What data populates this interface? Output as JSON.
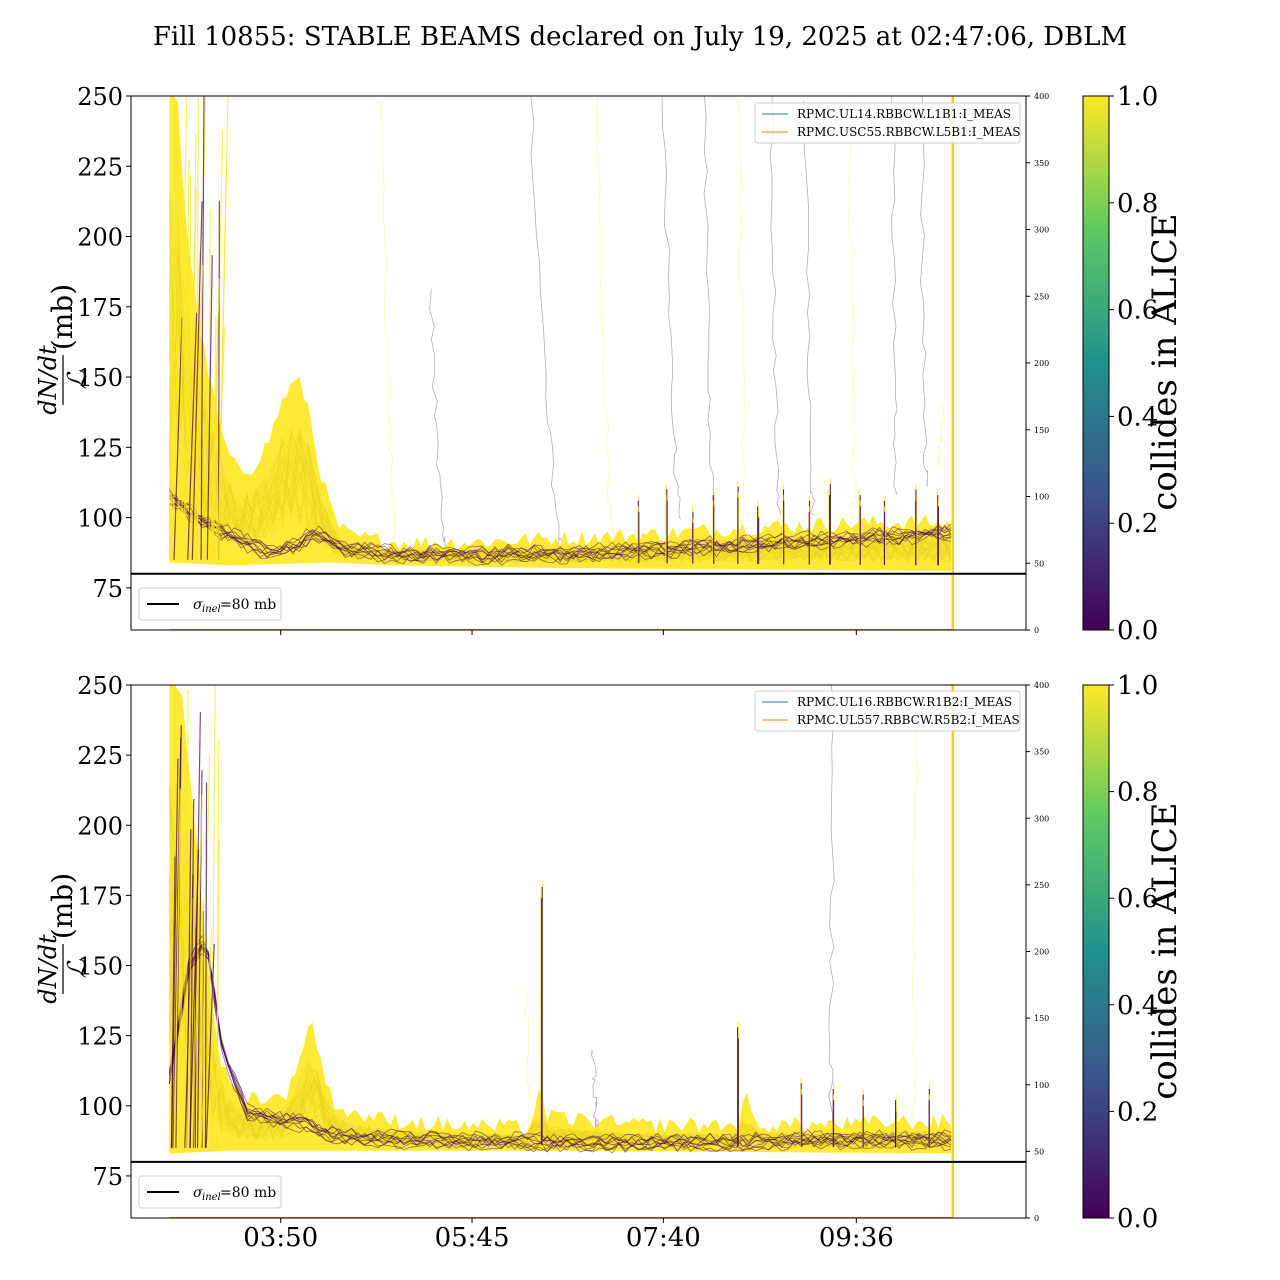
{
  "title": "Fill 10855: STABLE BEAMS declared on July 19, 2025 at 02:47:06, DBLM",
  "colormap": {
    "label": "collides in ALICE",
    "ticks": [
      "0.0",
      "0.2",
      "0.4",
      "0.6",
      "0.8",
      "1.0"
    ],
    "stops": [
      "#440154",
      "#3b528b",
      "#21918c",
      "#5ec962",
      "#fde725"
    ]
  },
  "x_tick_labels": [
    "03:50",
    "05:45",
    "07:40",
    "09:36"
  ],
  "chart_data": [
    {
      "type": "line",
      "panel": "top",
      "ylabel_main": "dN/dt",
      "ylabel_frac": "ℒ",
      "ylabel_unit": "(mb)",
      "y_ticks": [
        "75",
        "100",
        "125",
        "150",
        "175",
        "200",
        "225",
        "250"
      ],
      "ylim": [
        60,
        250
      ],
      "y2_ticks": [
        "0",
        "50",
        "100",
        "150",
        "200",
        "250",
        "300",
        "350",
        "400"
      ],
      "y2lim": [
        0,
        400
      ],
      "xlim_minutes": [
        140,
        678
      ],
      "x_tick_minutes": [
        230,
        345,
        460,
        576
      ],
      "end_marker_minutes": 634,
      "reference": {
        "value": 80,
        "label_sym": "σ",
        "label_sub": "inel",
        "label_rest": "=80 mb",
        "color": "#000000"
      },
      "legend": [
        {
          "name": "RPMC.UL14.RBBCW.L1B1:I_MEAS",
          "color": "#1f77b4"
        },
        {
          "name": "RPMC.USC55.RBBCW.L5B1:I_MEAS",
          "color": "#ff7f0e"
        }
      ],
      "envelope_yellow": [
        [
          163,
          250
        ],
        [
          168,
          250
        ],
        [
          172,
          210
        ],
        [
          180,
          170
        ],
        [
          190,
          140
        ],
        [
          196,
          125
        ],
        [
          204,
          115
        ],
        [
          212,
          116
        ],
        [
          222,
          125
        ],
        [
          232,
          142
        ],
        [
          240,
          148
        ],
        [
          246,
          140
        ],
        [
          252,
          120
        ],
        [
          258,
          106
        ],
        [
          264,
          96
        ],
        [
          272,
          92
        ],
        [
          300,
          90
        ],
        [
          340,
          90
        ],
        [
          380,
          91
        ],
        [
          420,
          92
        ],
        [
          460,
          93
        ],
        [
          500,
          95
        ],
        [
          540,
          96
        ],
        [
          580,
          97
        ],
        [
          620,
          97
        ],
        [
          633,
          97
        ]
      ],
      "envelope_yellow_low": [
        [
          163,
          84
        ],
        [
          200,
          83
        ],
        [
          260,
          84
        ],
        [
          300,
          83
        ],
        [
          400,
          82
        ],
        [
          633,
          81
        ]
      ],
      "envelope_purple": [
        [
          163,
          108
        ],
        [
          180,
          100
        ],
        [
          200,
          94
        ],
        [
          220,
          88
        ],
        [
          240,
          90
        ],
        [
          250,
          95
        ],
        [
          258,
          93
        ],
        [
          266,
          89
        ],
        [
          300,
          87
        ],
        [
          400,
          87
        ],
        [
          460,
          89
        ],
        [
          520,
          91
        ],
        [
          580,
          93
        ],
        [
          633,
          95
        ]
      ],
      "spikes": [
        [
          445,
          108
        ],
        [
          462,
          112
        ],
        [
          478,
          104
        ],
        [
          490,
          110
        ],
        [
          505,
          113
        ],
        [
          517,
          106
        ],
        [
          532,
          112
        ],
        [
          548,
          108
        ],
        [
          560,
          114
        ],
        [
          578,
          110
        ],
        [
          593,
          108
        ],
        [
          612,
          112
        ],
        [
          625,
          110
        ]
      ],
      "wisps": [
        [
          300,
          85,
          290,
          250
        ],
        [
          330,
          88,
          320,
          180
        ],
        [
          400,
          90,
          380,
          250
        ],
        [
          430,
          95,
          420,
          250
        ],
        [
          470,
          100,
          460,
          250
        ],
        [
          490,
          105,
          485,
          250
        ],
        [
          510,
          100,
          505,
          250
        ],
        [
          530,
          103,
          525,
          250
        ],
        [
          550,
          102,
          545,
          250
        ],
        [
          575,
          105,
          572,
          250
        ],
        [
          600,
          110,
          598,
          250
        ],
        [
          618,
          112,
          615,
          250
        ],
        [
          625,
          118,
          628,
          140
        ]
      ]
    },
    {
      "type": "line",
      "panel": "bottom",
      "ylabel_main": "dN/dt",
      "ylabel_frac": "ℒ",
      "ylabel_unit": "(mb)",
      "y_ticks": [
        "75",
        "100",
        "125",
        "150",
        "175",
        "200",
        "225",
        "250"
      ],
      "ylim": [
        60,
        250
      ],
      "y2_ticks": [
        "0",
        "50",
        "100",
        "150",
        "200",
        "250",
        "300",
        "350",
        "400"
      ],
      "y2lim": [
        0,
        400
      ],
      "xlim_minutes": [
        140,
        678
      ],
      "x_tick_minutes": [
        230,
        345,
        460,
        576
      ],
      "end_marker_minutes": 634,
      "reference": {
        "value": 80,
        "label_sym": "σ",
        "label_sub": "inel",
        "label_rest": "=80 mb",
        "color": "#000000"
      },
      "legend": [
        {
          "name": "RPMC.UL16.RBBCW.R1B2:I_MEAS",
          "color": "#1f77b4"
        },
        {
          "name": "RPMC.UL557.RBBCW.R5B2:I_MEAS",
          "color": "#ff7f0e"
        }
      ],
      "envelope_yellow": [
        [
          163,
          250
        ],
        [
          170,
          250
        ],
        [
          178,
          200
        ],
        [
          186,
          150
        ],
        [
          192,
          120
        ],
        [
          198,
          108
        ],
        [
          205,
          103
        ],
        [
          215,
          102
        ],
        [
          225,
          101
        ],
        [
          235,
          104
        ],
        [
          242,
          118
        ],
        [
          248,
          130
        ],
        [
          254,
          115
        ],
        [
          260,
          102
        ],
        [
          268,
          97
        ],
        [
          290,
          94
        ],
        [
          330,
          92
        ],
        [
          380,
          91
        ],
        [
          385,
          105
        ],
        [
          390,
          95
        ],
        [
          440,
          92
        ],
        [
          505,
          92
        ],
        [
          510,
          102
        ],
        [
          515,
          92
        ],
        [
          560,
          92
        ],
        [
          600,
          93
        ],
        [
          633,
          93
        ]
      ],
      "envelope_yellow_low": [
        [
          163,
          83
        ],
        [
          200,
          84
        ],
        [
          260,
          84
        ],
        [
          300,
          84
        ],
        [
          400,
          84
        ],
        [
          633,
          83
        ]
      ],
      "envelope_purple": [
        [
          163,
          110
        ],
        [
          175,
          150
        ],
        [
          185,
          160
        ],
        [
          195,
          120
        ],
        [
          210,
          98
        ],
        [
          230,
          95
        ],
        [
          245,
          94
        ],
        [
          260,
          90
        ],
        [
          300,
          88
        ],
        [
          400,
          87
        ],
        [
          500,
          87
        ],
        [
          540,
          88
        ],
        [
          580,
          88
        ],
        [
          633,
          88
        ]
      ],
      "spikes": [
        [
          387,
          180
        ],
        [
          505,
          130
        ],
        [
          543,
          110
        ],
        [
          562,
          108
        ],
        [
          580,
          106
        ],
        [
          600,
          104
        ],
        [
          620,
          108
        ]
      ],
      "wisps": [
        [
          380,
          90,
          378,
          140
        ],
        [
          420,
          92,
          418,
          120
        ],
        [
          560,
          90,
          562,
          250
        ],
        [
          610,
          92,
          612,
          250
        ]
      ]
    }
  ]
}
